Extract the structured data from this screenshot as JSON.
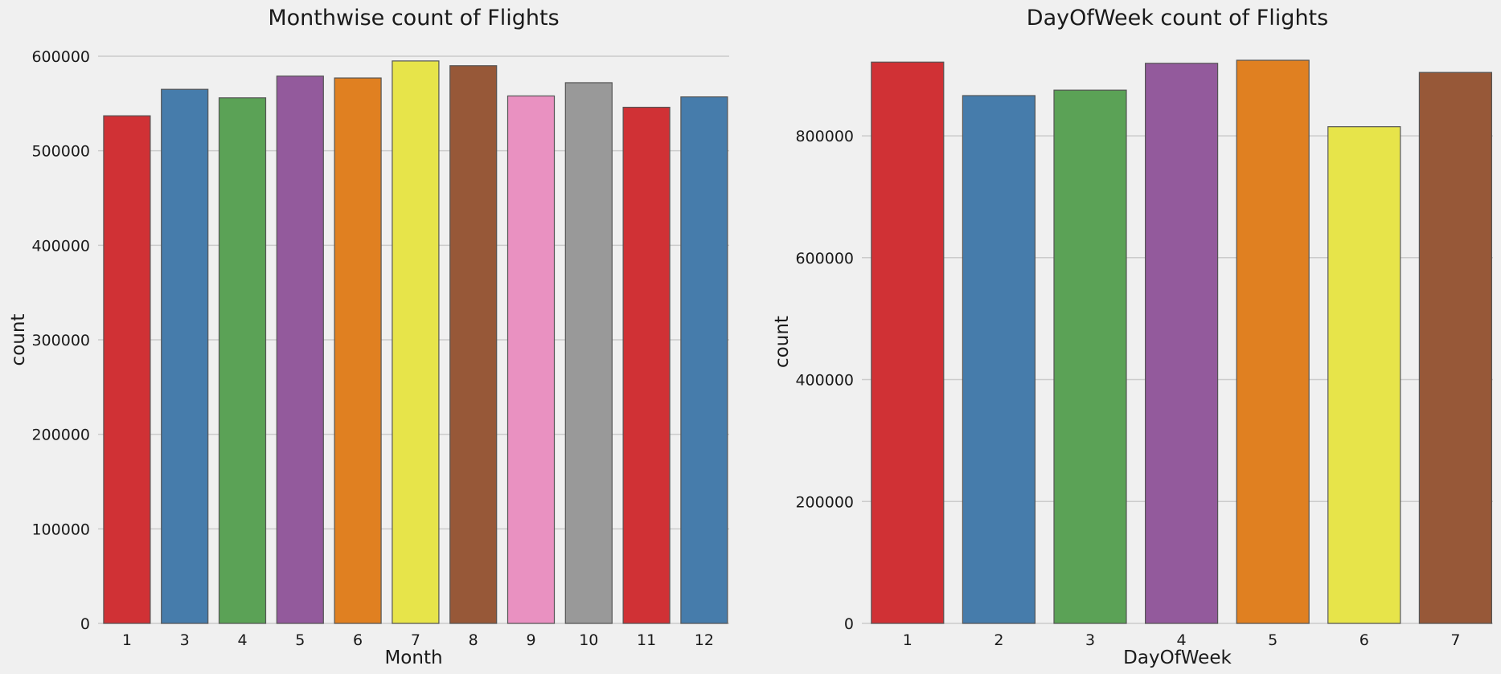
{
  "chart_data": [
    {
      "type": "bar",
      "title": "Monthwise count of Flights",
      "xlabel": "Month",
      "ylabel": "count",
      "categories": [
        "1",
        "3",
        "4",
        "5",
        "6",
        "7",
        "8",
        "9",
        "10",
        "11",
        "12"
      ],
      "values": [
        537000,
        565000,
        556000,
        579000,
        577000,
        595000,
        590000,
        558000,
        572000,
        546000,
        557000
      ],
      "colors": [
        "#d03135",
        "#467cab",
        "#5ba256",
        "#935a9c",
        "#e08021",
        "#e7e44a",
        "#975838",
        "#e991c1",
        "#999999",
        "#d03135",
        "#467cab"
      ],
      "yticks": [
        0,
        100000,
        200000,
        300000,
        400000,
        500000,
        600000
      ],
      "ylim": [
        0,
        600000
      ],
      "grid": true
    },
    {
      "type": "bar",
      "title": "DayOfWeek count of Flights",
      "xlabel": "DayOfWeek",
      "ylabel": "count",
      "categories": [
        "1",
        "2",
        "3",
        "4",
        "5",
        "6",
        "7"
      ],
      "values": [
        921000,
        866000,
        875000,
        919000,
        924000,
        815000,
        904000
      ],
      "colors": [
        "#d03135",
        "#467cab",
        "#5ba256",
        "#935a9c",
        "#e08021",
        "#e7e44a",
        "#975838"
      ],
      "yticks": [
        0,
        200000,
        400000,
        600000,
        800000
      ],
      "ylim": [
        0,
        924000
      ],
      "grid": true
    }
  ]
}
